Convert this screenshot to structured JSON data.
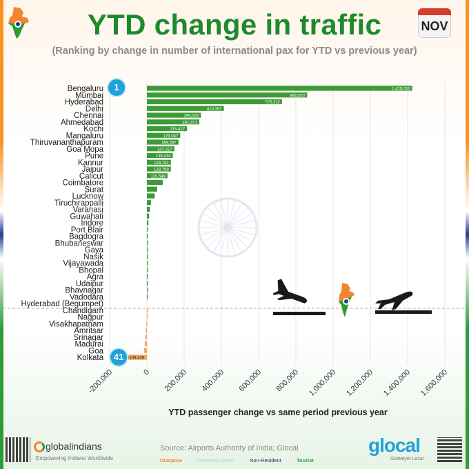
{
  "header": {
    "title": "YTD change in traffic",
    "subtitle": "(Ranking by change in number of international pax for YTD vs previous year)",
    "month": "NOV"
  },
  "rank_badges": {
    "top": "1",
    "bottom": "41"
  },
  "colors": {
    "positive": "#3d9b35",
    "negative": "#f2a65a",
    "title": "#1e8a2e",
    "badge": "#1fa3d9"
  },
  "chart_data": {
    "type": "bar",
    "orientation": "horizontal",
    "xlabel": "YTD passenger change vs same period previous year",
    "xlim": [
      -200000,
      1600000
    ],
    "xticks": [
      "-200,000",
      "0",
      "200,000",
      "400,000",
      "600,000",
      "800,000",
      "1,000,000",
      "1,200,000",
      "1,400,000",
      "1,600,000"
    ],
    "xtick_values": [
      -200000,
      0,
      200000,
      400000,
      600000,
      800000,
      1000000,
      1200000,
      1400000,
      1600000
    ],
    "grid": "vertical",
    "categories": [
      "Bengaluru",
      "Mumbai",
      "Hyderabad",
      "Delhi",
      "Chennai",
      "Ahmedabad",
      "Kochi",
      "Mangaluru",
      "Thiruvananthapuram",
      "Goa Mopa",
      "Pune",
      "Kannur",
      "Jaipur",
      "Calicut",
      "Coimbatore",
      "Surat",
      "Lucknow",
      "Tiruchirappalli",
      "Varanasi",
      "Guwahati",
      "Indore",
      "Port Blair",
      "Bagdogra",
      "Bhubaneswar",
      "Gaya",
      "Nasik",
      "Vijayawada",
      "Bhopal",
      "Agra",
      "Udaipur",
      "Bhavnagar",
      "Vadodara",
      "Hyderabad (Begumpet)",
      "Chandigarh",
      "Nagpur",
      "Visakhapatnam",
      "Amritsar",
      "Srinagar",
      "Madurai",
      "Goa",
      "Kolkata"
    ],
    "values": [
      1425010,
      860572,
      725212,
      413357,
      290160,
      281371,
      215427,
      179047,
      169597,
      147317,
      139234,
      128781,
      128759,
      110588,
      85000,
      55000,
      42000,
      22000,
      16000,
      12000,
      8000,
      4000,
      2500,
      2000,
      1200,
      800,
      600,
      400,
      300,
      200,
      100,
      50,
      0,
      -300,
      -1000,
      -3000,
      -6000,
      -8000,
      -12000,
      -16000,
      -109428
    ],
    "data_labels": [
      "1,425,010",
      "860,572",
      "725,212",
      "413,357",
      "290,160",
      "281,371",
      "215,427",
      "179,047",
      "169,597",
      "147,317",
      "139,234",
      "128,781",
      "128,759",
      "110,588",
      "",
      "",
      "",
      "",
      "",
      "",
      "",
      "",
      "",
      "",
      "",
      "",
      "",
      "",
      "",
      "",
      "",
      "",
      "",
      "",
      "",
      "",
      "",
      "",
      "",
      "",
      "-109,428"
    ]
  },
  "footer": {
    "source": "Source: Airports Authority of India; Glocal",
    "brand_left": "globalindians",
    "brand_left_tagline": "Empowering Indians Worldwide",
    "brand_right": "glocal",
    "brand_right_tagline": "Globalyet Local",
    "legend": [
      {
        "label": "Diaspora",
        "color": "#f2862e"
      },
      {
        "label": "Overseas Citizen",
        "color": "#bfe3f2"
      },
      {
        "label": "Non-Resident",
        "color": "#1f2f6b"
      },
      {
        "label": "Tourist",
        "color": "#2e9b3a"
      }
    ]
  }
}
